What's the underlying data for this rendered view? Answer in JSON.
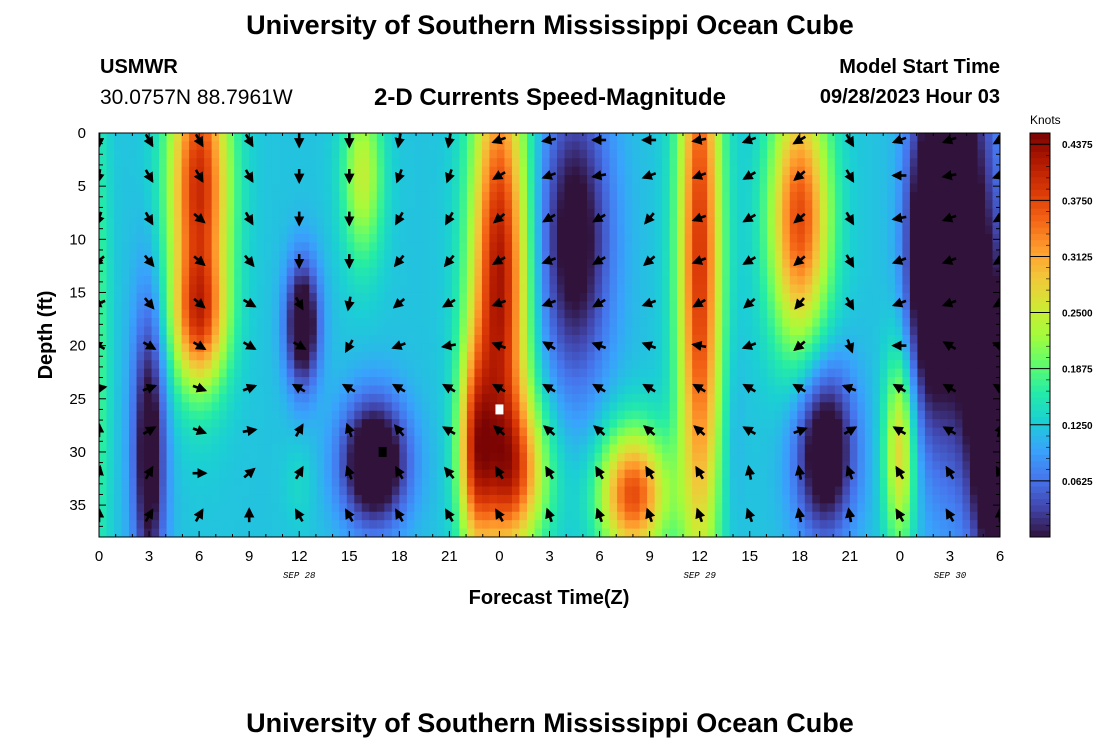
{
  "header": {
    "title": "University of Southern Mississippi Ocean Cube",
    "station": "USMWR",
    "coords": "30.0757N  88.7961W",
    "subtitle": "2-D Currents Speed-Magnitude",
    "model_start_label": "Model Start Time",
    "model_start_value": "09/28/2023 Hour 03"
  },
  "footer": {
    "title": "University of Southern Mississippi Ocean Cube"
  },
  "chart_data": {
    "type": "heatmap",
    "title": "2-D Currents Speed-Magnitude",
    "xlabel": "Forecast Time(Z)",
    "ylabel": "Depth (ft)",
    "x_tick_labels": [
      "0",
      "3",
      "6",
      "9",
      "12",
      "15",
      "18",
      "21",
      "0",
      "3",
      "6",
      "9",
      "12",
      "15",
      "18",
      "21",
      "0",
      "3",
      "6"
    ],
    "x_range_hours": [
      0,
      54
    ],
    "date_labels": [
      {
        "text": "SEP 28",
        "hour": 12
      },
      {
        "text": "SEP 29",
        "hour": 36
      },
      {
        "text": "SEP 30",
        "hour": 51
      }
    ],
    "y_tick_labels": [
      "0",
      "5",
      "10",
      "15",
      "20",
      "25",
      "30",
      "35"
    ],
    "y_range_ft": [
      0,
      38
    ],
    "colorbar": {
      "unit": "Knots",
      "min": 0.0,
      "max": 0.45,
      "tick_labels": [
        "0.4375",
        "0.3750",
        "0.3125",
        "0.2500",
        "0.1875",
        "0.1250",
        "0.0625"
      ],
      "colors": [
        "#30123b",
        "#4145ab",
        "#4675ed",
        "#39a2fc",
        "#1bcfd4",
        "#24eca6",
        "#61fc6c",
        "#a4fc3b",
        "#d1e834",
        "#f3c63a",
        "#fe9b2d",
        "#f36315",
        "#d93806",
        "#b11901",
        "#7a0403"
      ]
    },
    "speed_blobs": [
      {
        "hour": 6.0,
        "depth": 5,
        "width": 1.8,
        "height": 14,
        "speed": 0.43
      },
      {
        "hour": 6.0,
        "depth": 18,
        "width": 1.6,
        "height": 6,
        "speed": 0.3
      },
      {
        "hour": 3.0,
        "depth": 30,
        "width": 1.0,
        "height": 14,
        "speed": -0.05
      },
      {
        "hour": 0.0,
        "depth": 20,
        "width": 0.7,
        "height": 25,
        "speed": 0.18
      },
      {
        "hour": 12.2,
        "depth": 18,
        "width": 1.0,
        "height": 6,
        "speed": -0.07
      },
      {
        "hour": 12.0,
        "depth": 33,
        "width": 0.9,
        "height": 4,
        "speed": 0.14
      },
      {
        "hour": 15.8,
        "depth": 4,
        "width": 1.2,
        "height": 8,
        "speed": 0.26
      },
      {
        "hour": 16.5,
        "depth": 31,
        "width": 2.0,
        "height": 6,
        "speed": -0.09
      },
      {
        "hour": 22.5,
        "depth": 30,
        "width": 1.0,
        "height": 10,
        "speed": 0.33
      },
      {
        "hour": 24.0,
        "depth": 14,
        "width": 1.7,
        "height": 22,
        "speed": 0.46
      },
      {
        "hour": 25.0,
        "depth": 32,
        "width": 2.0,
        "height": 7,
        "speed": 0.32
      },
      {
        "hour": 28.5,
        "depth": 10,
        "width": 2.2,
        "height": 14,
        "speed": -0.04
      },
      {
        "hour": 32.0,
        "depth": 34,
        "width": 2.0,
        "height": 6,
        "speed": 0.4
      },
      {
        "hour": 36.0,
        "depth": 12,
        "width": 1.3,
        "height": 30,
        "speed": 0.42
      },
      {
        "hour": 38.0,
        "depth": 28,
        "width": 0.6,
        "height": 10,
        "speed": 0.1
      },
      {
        "hour": 42.0,
        "depth": 8,
        "width": 1.8,
        "height": 12,
        "speed": 0.4
      },
      {
        "hour": 43.5,
        "depth": 30,
        "width": 1.8,
        "height": 8,
        "speed": -0.07
      },
      {
        "hour": 48.0,
        "depth": 30,
        "width": 0.9,
        "height": 9,
        "speed": 0.3
      },
      {
        "hour": 49.5,
        "depth": 12,
        "width": 1.2,
        "height": 14,
        "speed": -0.03
      },
      {
        "hour": 51.5,
        "depth": 10,
        "width": 2.2,
        "height": 22,
        "speed": -0.07
      },
      {
        "hour": 53.5,
        "depth": 28,
        "width": 1.2,
        "height": 14,
        "speed": -0.09
      }
    ],
    "base_speed": 0.12,
    "arrow_hours": [
      0,
      3,
      6,
      9,
      12,
      15,
      18,
      21,
      24,
      27,
      30,
      33,
      36,
      39,
      42,
      45,
      48,
      51,
      54
    ],
    "arrow_depths": [
      0,
      4,
      8,
      12,
      16,
      20,
      24,
      28,
      32,
      36
    ],
    "arrow_directions_deg": [
      [
        270,
        300,
        300,
        300,
        270,
        270,
        260,
        260,
        200,
        190,
        180,
        180,
        190,
        200,
        210,
        300,
        200,
        200,
        210
      ],
      [
        260,
        300,
        300,
        300,
        270,
        270,
        250,
        250,
        210,
        200,
        190,
        200,
        200,
        210,
        220,
        300,
        180,
        190,
        200
      ],
      [
        250,
        300,
        320,
        300,
        270,
        270,
        240,
        240,
        220,
        210,
        210,
        230,
        200,
        210,
        220,
        300,
        190,
        200,
        210
      ],
      [
        220,
        310,
        320,
        310,
        270,
        270,
        230,
        230,
        210,
        200,
        210,
        220,
        200,
        210,
        220,
        300,
        200,
        200,
        210
      ],
      [
        200,
        310,
        320,
        330,
        300,
        260,
        220,
        210,
        200,
        200,
        210,
        200,
        210,
        220,
        230,
        300,
        200,
        200,
        210
      ],
      [
        150,
        330,
        330,
        330,
        330,
        240,
        200,
        190,
        160,
        150,
        160,
        160,
        170,
        200,
        220,
        290,
        180,
        150,
        160
      ],
      [
        10,
        20,
        340,
        20,
        150,
        150,
        150,
        150,
        150,
        150,
        150,
        150,
        150,
        150,
        150,
        160,
        150,
        150,
        150
      ],
      [
        90,
        30,
        340,
        10,
        60,
        110,
        130,
        150,
        140,
        140,
        140,
        140,
        140,
        150,
        20,
        30,
        150,
        150,
        70
      ],
      [
        80,
        60,
        0,
        40,
        60,
        110,
        120,
        130,
        120,
        120,
        120,
        120,
        120,
        100,
        100,
        110,
        120,
        120,
        120
      ],
      [
        90,
        60,
        60,
        90,
        120,
        120,
        120,
        120,
        120,
        110,
        110,
        110,
        110,
        110,
        100,
        100,
        120,
        120,
        90
      ]
    ],
    "markers": [
      {
        "hour": 24,
        "depth": 26,
        "color": "#ffffff"
      },
      {
        "hour": 17,
        "depth": 30,
        "color": "#000000"
      }
    ]
  }
}
